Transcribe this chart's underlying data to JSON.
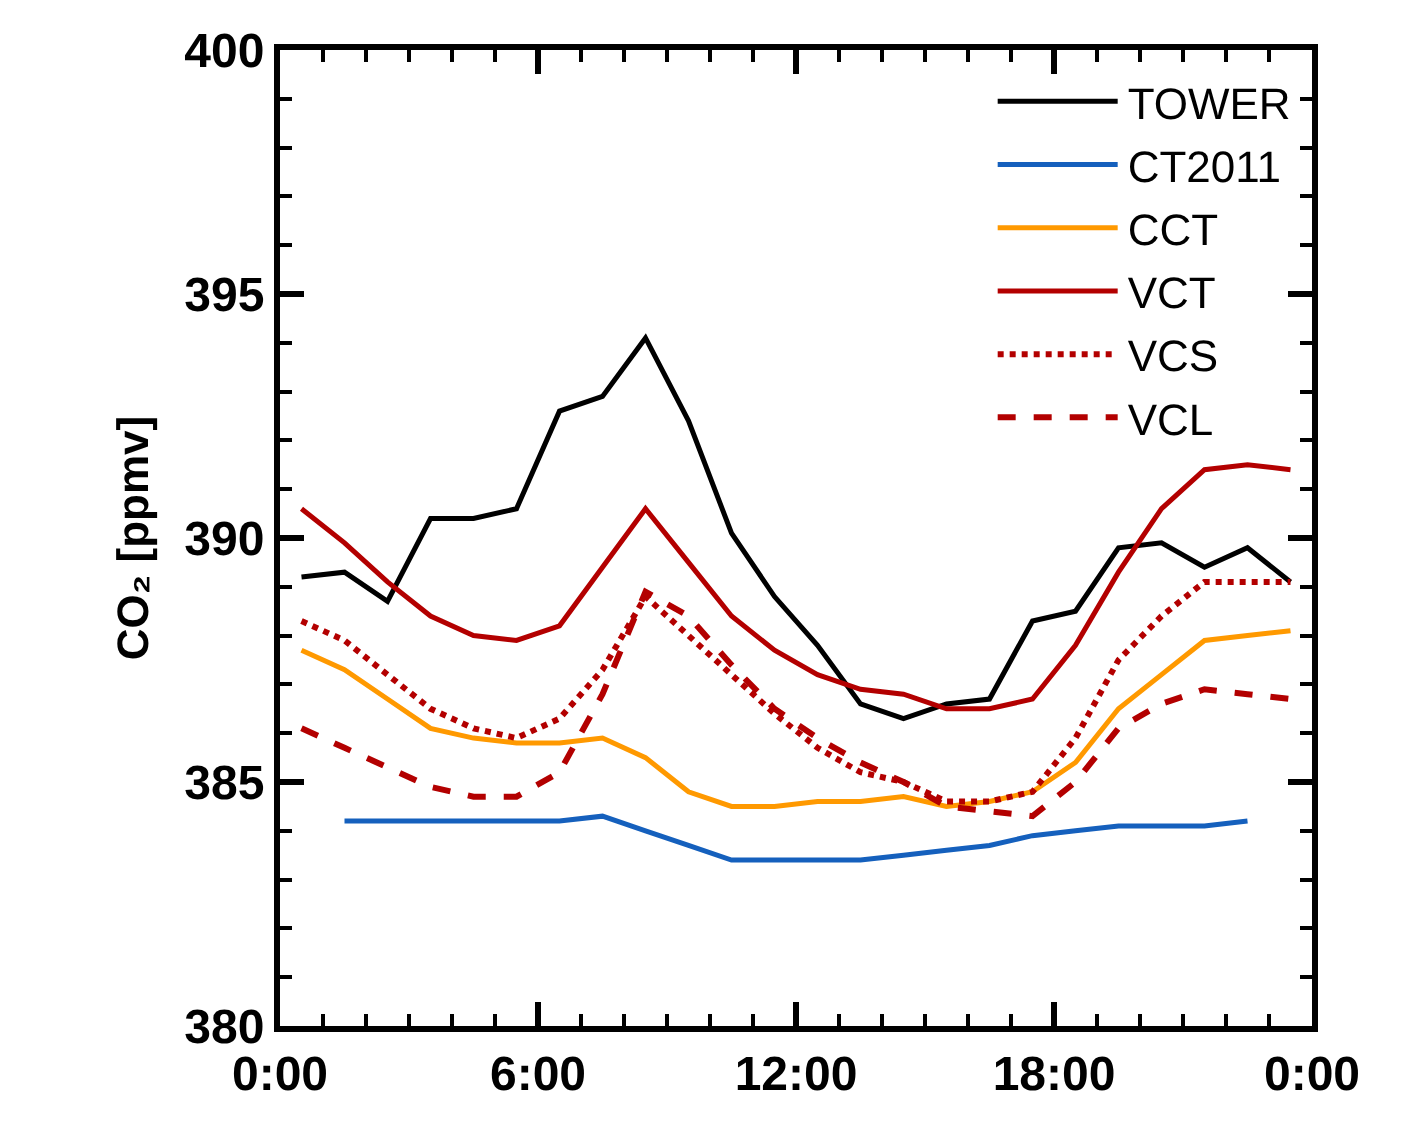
{
  "chart_data": {
    "type": "line",
    "ylabel": "CO₂ [ppmv]",
    "x": [
      0.5,
      1.5,
      2.5,
      3.5,
      4.5,
      5.5,
      6.5,
      7.5,
      8.5,
      9.5,
      10.5,
      11.5,
      12.5,
      13.5,
      14.5,
      15.5,
      16.5,
      17.5,
      18.5,
      19.5,
      20.5,
      21.5,
      22.5,
      23.5
    ],
    "xlim": [
      0,
      24
    ],
    "xticks": [
      {
        "value": 0,
        "label": "0:00"
      },
      {
        "value": 6,
        "label": "6:00"
      },
      {
        "value": 12,
        "label": "12:00"
      },
      {
        "value": 18,
        "label": "18:00"
      },
      {
        "value": 24,
        "label": "0:00"
      }
    ],
    "ylim": [
      380,
      400
    ],
    "yticks": [
      380,
      385,
      390,
      395,
      400
    ],
    "legend": "top right",
    "marker": "none",
    "series": [
      {
        "name": "TOWER",
        "color": "#000000",
        "line_style": "solid",
        "values": [
          389.2,
          389.3,
          388.7,
          390.4,
          390.4,
          390.6,
          392.6,
          392.9,
          394.1,
          392.4,
          390.1,
          388.8,
          387.8,
          386.6,
          386.3,
          386.6,
          386.7,
          388.3,
          388.5,
          389.8,
          389.9,
          389.4,
          389.8,
          389.1
        ]
      },
      {
        "name": "CT2011",
        "color": "#1560bd",
        "line_style": "solid",
        "values": [
          null,
          384.2,
          384.2,
          384.2,
          384.2,
          384.2,
          384.2,
          384.3,
          384.0,
          383.7,
          383.4,
          383.4,
          383.4,
          383.4,
          383.5,
          383.6,
          383.7,
          383.9,
          384.0,
          384.1,
          384.1,
          384.1,
          384.2,
          null
        ]
      },
      {
        "name": "CCT",
        "color": "#ff9900",
        "line_style": "solid",
        "values": [
          387.7,
          387.3,
          386.7,
          386.1,
          385.9,
          385.8,
          385.8,
          385.9,
          385.5,
          384.8,
          384.5,
          384.5,
          384.6,
          384.6,
          384.7,
          384.5,
          384.6,
          384.8,
          385.4,
          386.5,
          387.2,
          387.9,
          388.0,
          388.1
        ]
      },
      {
        "name": "VCT",
        "color": "#b30000",
        "line_style": "solid",
        "values": [
          390.6,
          389.9,
          389.1,
          388.4,
          388.0,
          387.9,
          388.2,
          389.4,
          390.6,
          389.5,
          388.4,
          387.7,
          387.2,
          386.9,
          386.8,
          386.5,
          386.5,
          386.7,
          387.8,
          389.3,
          390.6,
          391.4,
          391.5,
          391.4
        ]
      },
      {
        "name": "VCS",
        "color": "#b30000",
        "line_style": "dotted",
        "values": [
          388.3,
          387.9,
          387.2,
          386.5,
          386.1,
          385.9,
          386.3,
          387.3,
          388.8,
          388.0,
          387.2,
          386.4,
          385.7,
          385.2,
          385.0,
          384.6,
          384.6,
          384.8,
          385.9,
          387.5,
          388.4,
          389.1,
          389.1,
          389.1
        ]
      },
      {
        "name": "VCL",
        "color": "#b30000",
        "line_style": "dashed",
        "values": [
          386.1,
          385.7,
          385.3,
          384.9,
          384.7,
          384.7,
          385.2,
          386.8,
          388.9,
          388.4,
          387.4,
          386.5,
          385.9,
          385.4,
          385.0,
          384.5,
          384.4,
          384.3,
          385.0,
          386.1,
          386.6,
          386.9,
          386.8,
          386.7
        ]
      }
    ]
  }
}
